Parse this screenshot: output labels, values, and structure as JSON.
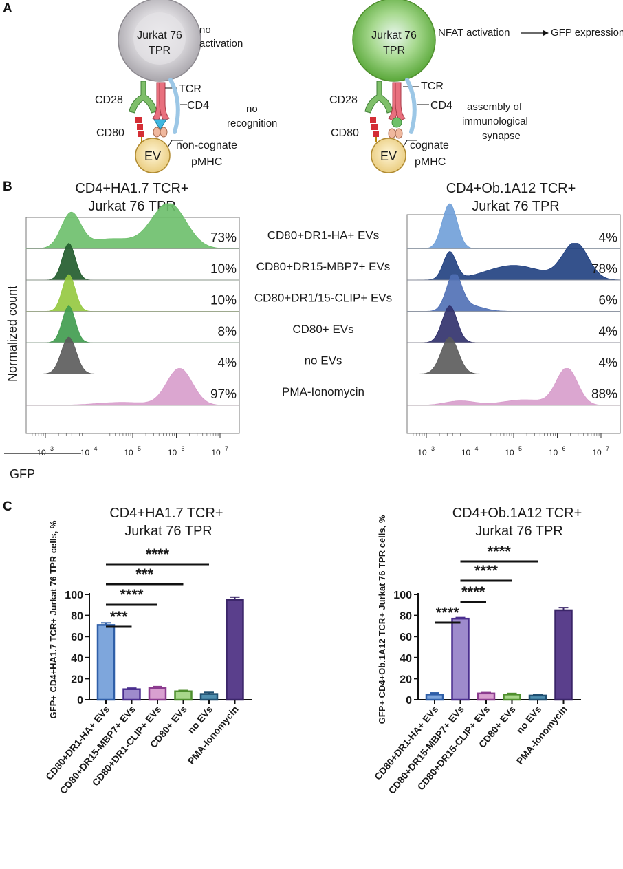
{
  "panel_labels": {
    "a": "A",
    "b": "B",
    "c": "C"
  },
  "panel_a": {
    "left": {
      "cell_line_1": "Jurkat 76",
      "cell_line_2": "TPR",
      "status_1": "no",
      "status_2": "activation",
      "cd28": "CD28",
      "tcr": "TCR",
      "cd4": "CD4",
      "cd80": "CD80",
      "recog_1": "no",
      "recog_2": "recognition",
      "ev": "EV",
      "pmhc_1": "non-cognate",
      "pmhc_2": "pMHC"
    },
    "right": {
      "cell_line_1": "Jurkat 76",
      "cell_line_2": "TPR",
      "nfat": "NFAT activation",
      "gfp_expr": "GFP expression",
      "cd28": "CD28",
      "tcr": "TCR",
      "cd4": "CD4",
      "cd80": "CD80",
      "synapse_1": "assembly of",
      "synapse_2": "immunological",
      "synapse_3": "synapse",
      "ev": "EV",
      "pmhc_1": "cognate",
      "pmhc_2": "pMHC"
    },
    "colors": {
      "inactive_cell": "#c9c7cb",
      "active_cell": "#7ec259",
      "ev": "#f5dfa0",
      "cd28": "#7fbf6a",
      "tcr": "#e8707e",
      "cd4": "#9cc7e6",
      "cd80": "#d42e35"
    }
  },
  "panel_b": {
    "left_title_1": "CD4+HA1.7 TCR+",
    "left_title_2": "Jurkat 76 TPR",
    "right_title_1": "CD4+Ob.1A12 TCR+",
    "right_title_2": "Jurkat 76 TPR",
    "y_label": "Normalized count",
    "x_label": "GFP",
    "tick_labels": [
      "10",
      "10",
      "10",
      "10",
      "10"
    ],
    "tick_exponents": [
      "3",
      "4",
      "5",
      "6",
      "7"
    ],
    "conditions": [
      "CD80+DR1-HA+ EVs",
      "CD80+DR15-MBP7+ EVs",
      "CD80+DR1/15-CLIP+ EVs",
      "CD80+ EVs",
      "no EVs",
      "PMA-Ionomycin"
    ],
    "left_percents": [
      "73%",
      "10%",
      "10%",
      "8%",
      "4%",
      "97%"
    ],
    "right_percents": [
      "4%",
      "78%",
      "6%",
      "4%",
      "4%",
      "88%"
    ],
    "left_colors": [
      "#6cbf6a",
      "#1f5a2a",
      "#93c83e",
      "#3e9b4c",
      "#5a5a5a",
      "#d79ccb"
    ],
    "right_colors": [
      "#6f9fd8",
      "#1f3f80",
      "#4f6fb5",
      "#2f2f6a",
      "#5a5a5a",
      "#d79ccb"
    ]
  },
  "chart_data": [
    {
      "type": "bar",
      "title": "CD4+HA1.7 TCR+ Jurkat 76 TPR",
      "title_1": "CD4+HA1.7 TCR+",
      "title_2": "Jurkat 76 TPR",
      "ylabel": "GFP+ CD4+HA1.7 TCR+ Jurkat 76 TPR cells, %",
      "xlabel": "",
      "ylim": [
        0,
        100
      ],
      "yticks": [
        "0",
        "20",
        "40",
        "60",
        "80",
        "100"
      ],
      "categories": [
        "CD80+DR1-HA+ EVs",
        "CD80+DR15-MBP7+ EVs",
        "CD80+DR1-CLIP+ EVs",
        "CD80+ EVs",
        "no EVs",
        "PMA-Ionomycin"
      ],
      "values": [
        71,
        10,
        11,
        8,
        5.5,
        95
      ],
      "errors": [
        2,
        1,
        1.5,
        0.8,
        1.5,
        2.5
      ],
      "fill_colors": [
        "#7ea6dc",
        "#9e8bcc",
        "#d9a0d0",
        "#a8d78a",
        "#4f8fb0",
        "#5a3f8c"
      ],
      "edge_colors": [
        "#2f5fa8",
        "#4a2e8e",
        "#8c3c8f",
        "#4f8f2e",
        "#1f4f70",
        "#3a2568"
      ],
      "significance": [
        {
          "from": 0,
          "to": 1,
          "label": "***"
        },
        {
          "from": 0,
          "to": 2,
          "label": "****"
        },
        {
          "from": 0,
          "to": 3,
          "label": "***"
        },
        {
          "from": 0,
          "to": 4,
          "label": "****"
        }
      ]
    },
    {
      "type": "bar",
      "title": "CD4+Ob.1A12 TCR+ Jurkat 76 TPR",
      "title_1": "CD4+Ob.1A12 TCR+",
      "title_2": "Jurkat 76 TPR",
      "ylabel": "GFP+ CD4+Ob.1A12 TCR+ Jurkat 76 TPR cells, %",
      "xlabel": "",
      "ylim": [
        0,
        100
      ],
      "yticks": [
        "0",
        "20",
        "40",
        "60",
        "80",
        "100"
      ],
      "categories": [
        "CD80+DR1-HA+ EVs",
        "CD80+DR15-MBP7+ EVs",
        "CD80+DR15-CLIP+ EVs",
        "CD80+ EVs",
        "no EVs",
        "PMA-Ionomycin"
      ],
      "values": [
        5,
        77,
        6,
        5,
        4,
        85
      ],
      "errors": [
        1.5,
        1,
        0.8,
        1,
        0.8,
        2.5
      ],
      "fill_colors": [
        "#7ea6dc",
        "#9e8bcc",
        "#d9a0d0",
        "#a8d78a",
        "#4f8fb0",
        "#5a3f8c"
      ],
      "edge_colors": [
        "#2f5fa8",
        "#4a2e8e",
        "#8c3c8f",
        "#4f8f2e",
        "#1f4f70",
        "#3a2568"
      ],
      "significance": [
        {
          "from": 0,
          "to": 1,
          "label": "****"
        },
        {
          "from": 1,
          "to": 2,
          "label": "****"
        },
        {
          "from": 1,
          "to": 3,
          "label": "****"
        },
        {
          "from": 1,
          "to": 4,
          "label": "****"
        }
      ]
    }
  ]
}
